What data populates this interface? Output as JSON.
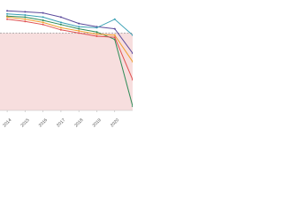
{
  "chart_data": {
    "type": "line",
    "x": [
      2014,
      2015,
      2016,
      2017,
      2018,
      2019,
      2020,
      2021
    ],
    "xlim": [
      2013.6,
      2021.0
    ],
    "xticks": [
      2014,
      2015,
      2016,
      2017,
      2018,
      2019,
      2020
    ],
    "ylim": [
      0,
      100
    ],
    "threshold": 73,
    "threshold_color": "#f7dede",
    "series": [
      {
        "color": "#5b4a9b",
        "values": [
          94,
          93,
          92,
          88,
          82,
          79,
          77,
          54
        ]
      },
      {
        "color": "#3aa0b4",
        "values": [
          91,
          90,
          88,
          83,
          79,
          78,
          86,
          71
        ]
      },
      {
        "color": "#2e8b57",
        "values": [
          89,
          88,
          85,
          81,
          77,
          74,
          67,
          4
        ]
      },
      {
        "color": "#f0a030",
        "values": [
          88,
          86,
          83,
          78,
          75,
          72,
          71,
          46
        ]
      },
      {
        "color": "#e05050",
        "values": [
          86,
          84,
          81,
          76,
          73,
          70,
          69,
          29
        ]
      }
    ]
  }
}
